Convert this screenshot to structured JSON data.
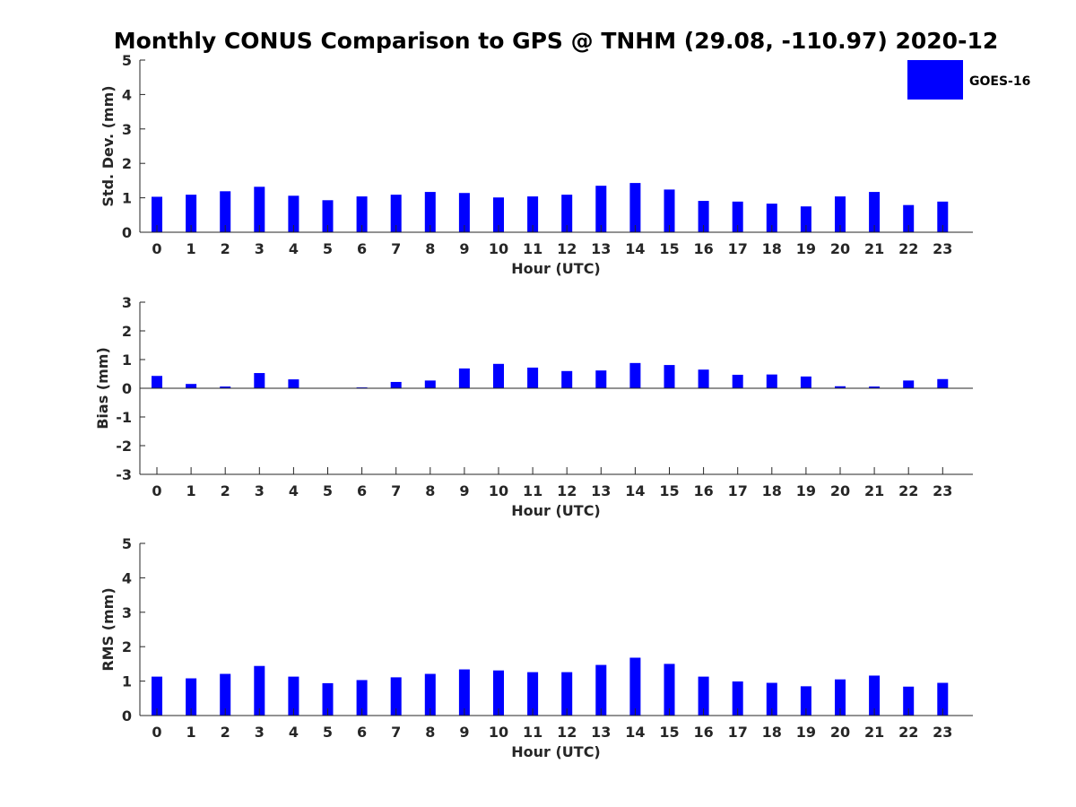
{
  "title": "Monthly CONUS Comparison to GPS @ TNHM (29.08, -110.97) 2020-12",
  "legend": {
    "label": "GOES-16",
    "color": "#0000ff",
    "placement": "top-right"
  },
  "bar_color": "#0000ff",
  "chart_data": [
    {
      "type": "bar",
      "xlabel": "Hour (UTC)",
      "ylabel": "Std. Dev. (mm)",
      "ylim": [
        0,
        5
      ],
      "yticks": [
        0,
        1,
        2,
        3,
        4,
        5
      ],
      "categories": [
        "0",
        "1",
        "2",
        "3",
        "4",
        "5",
        "6",
        "7",
        "8",
        "9",
        "10",
        "11",
        "12",
        "13",
        "14",
        "15",
        "16",
        "17",
        "18",
        "19",
        "20",
        "21",
        "22",
        "23"
      ],
      "series": [
        {
          "name": "GOES-16",
          "values": [
            1.03,
            1.09,
            1.19,
            1.32,
            1.06,
            0.93,
            1.04,
            1.09,
            1.17,
            1.14,
            1.01,
            1.04,
            1.09,
            1.35,
            1.43,
            1.24,
            0.91,
            0.89,
            0.83,
            0.75,
            1.04,
            1.17,
            0.79,
            0.89
          ]
        }
      ]
    },
    {
      "type": "bar",
      "xlabel": "Hour (UTC)",
      "ylabel": "Bias (mm)",
      "ylim": [
        -3,
        3
      ],
      "yticks": [
        -3,
        -2,
        -1,
        0,
        1,
        2,
        3
      ],
      "categories": [
        "0",
        "1",
        "2",
        "3",
        "4",
        "5",
        "6",
        "7",
        "8",
        "9",
        "10",
        "11",
        "12",
        "13",
        "14",
        "15",
        "16",
        "17",
        "18",
        "19",
        "20",
        "21",
        "22",
        "23"
      ],
      "series": [
        {
          "name": "GOES-16",
          "values": [
            0.43,
            0.15,
            0.06,
            0.53,
            0.31,
            0.0,
            0.03,
            0.22,
            0.27,
            0.69,
            0.85,
            0.72,
            0.6,
            0.62,
            0.88,
            0.81,
            0.65,
            0.47,
            0.48,
            0.41,
            0.07,
            0.06,
            0.27,
            0.32
          ]
        }
      ]
    },
    {
      "type": "bar",
      "xlabel": "Hour (UTC)",
      "ylabel": "RMS (mm)",
      "ylim": [
        0,
        5
      ],
      "yticks": [
        0,
        1,
        2,
        3,
        4,
        5
      ],
      "categories": [
        "0",
        "1",
        "2",
        "3",
        "4",
        "5",
        "6",
        "7",
        "8",
        "9",
        "10",
        "11",
        "12",
        "13",
        "14",
        "15",
        "16",
        "17",
        "18",
        "19",
        "20",
        "21",
        "22",
        "23"
      ],
      "series": [
        {
          "name": "GOES-16",
          "values": [
            1.13,
            1.08,
            1.21,
            1.44,
            1.13,
            0.94,
            1.03,
            1.11,
            1.21,
            1.34,
            1.31,
            1.26,
            1.26,
            1.47,
            1.68,
            1.5,
            1.13,
            0.99,
            0.95,
            0.85,
            1.05,
            1.16,
            0.84,
            0.95
          ]
        }
      ]
    }
  ]
}
